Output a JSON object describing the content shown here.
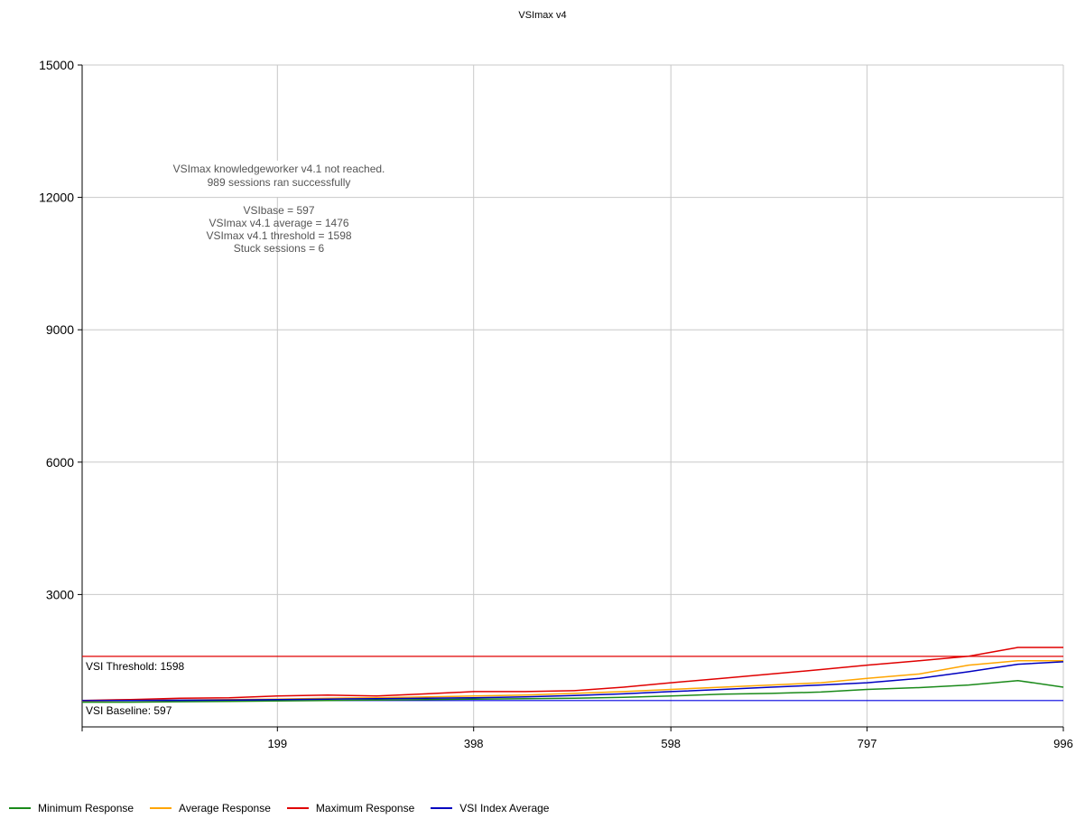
{
  "chart_data": {
    "type": "line",
    "title": "VSImax v4",
    "xlabel": "",
    "ylabel": "",
    "xlim": [
      1,
      996
    ],
    "ylim": [
      0,
      15000
    ],
    "x_ticks": [
      199,
      398,
      598,
      797,
      996
    ],
    "y_ticks": [
      3000,
      6000,
      9000,
      12000,
      15000
    ],
    "grid": true,
    "legend_position": "bottom",
    "annotation": {
      "line1": "VSImax knowledgeworker v4.1 not reached.",
      "line2": "989 sessions ran successfully",
      "line3": "VSIbase = 597",
      "line4": "VSImax v4.1 average = 1476",
      "line5": "VSImax v4.1 threshold = 1598",
      "line6": "Stuck sessions = 6"
    },
    "reference_lines": [
      {
        "label": "VSI Threshold: 1598",
        "value": 1598,
        "color": "#e00000"
      },
      {
        "label": "VSI Baseline: 597",
        "value": 597,
        "color": "#0000e0"
      }
    ],
    "x": [
      1,
      50,
      100,
      150,
      199,
      250,
      300,
      350,
      398,
      450,
      500,
      550,
      598,
      650,
      700,
      750,
      797,
      850,
      900,
      950,
      996
    ],
    "series": [
      {
        "name": "Minimum Response",
        "color": "#1a8a1a",
        "values": [
          560,
          560,
          570,
          580,
          590,
          600,
          610,
          620,
          630,
          640,
          650,
          670,
          700,
          740,
          760,
          790,
          850,
          890,
          950,
          1050,
          900
        ]
      },
      {
        "name": "Average Response",
        "color": "#ffa500",
        "values": [
          590,
          600,
          610,
          620,
          630,
          650,
          660,
          680,
          700,
          720,
          760,
          800,
          850,
          900,
          950,
          1000,
          1100,
          1200,
          1400,
          1500,
          1500
        ]
      },
      {
        "name": "Maximum Response",
        "color": "#e00000",
        "values": [
          600,
          620,
          650,
          660,
          700,
          720,
          700,
          750,
          800,
          800,
          820,
          900,
          1000,
          1100,
          1200,
          1300,
          1400,
          1500,
          1600,
          1800,
          1800
        ]
      },
      {
        "name": "VSI Index Average",
        "color": "#0000c0",
        "values": [
          595,
          600,
          605,
          610,
          620,
          630,
          640,
          650,
          660,
          680,
          710,
          750,
          800,
          850,
          900,
          950,
          1000,
          1100,
          1250,
          1420,
          1476
        ]
      }
    ]
  },
  "colors": {
    "grid": "#c8c8c8",
    "axis": "#000000",
    "annotation_text": "#555555"
  }
}
